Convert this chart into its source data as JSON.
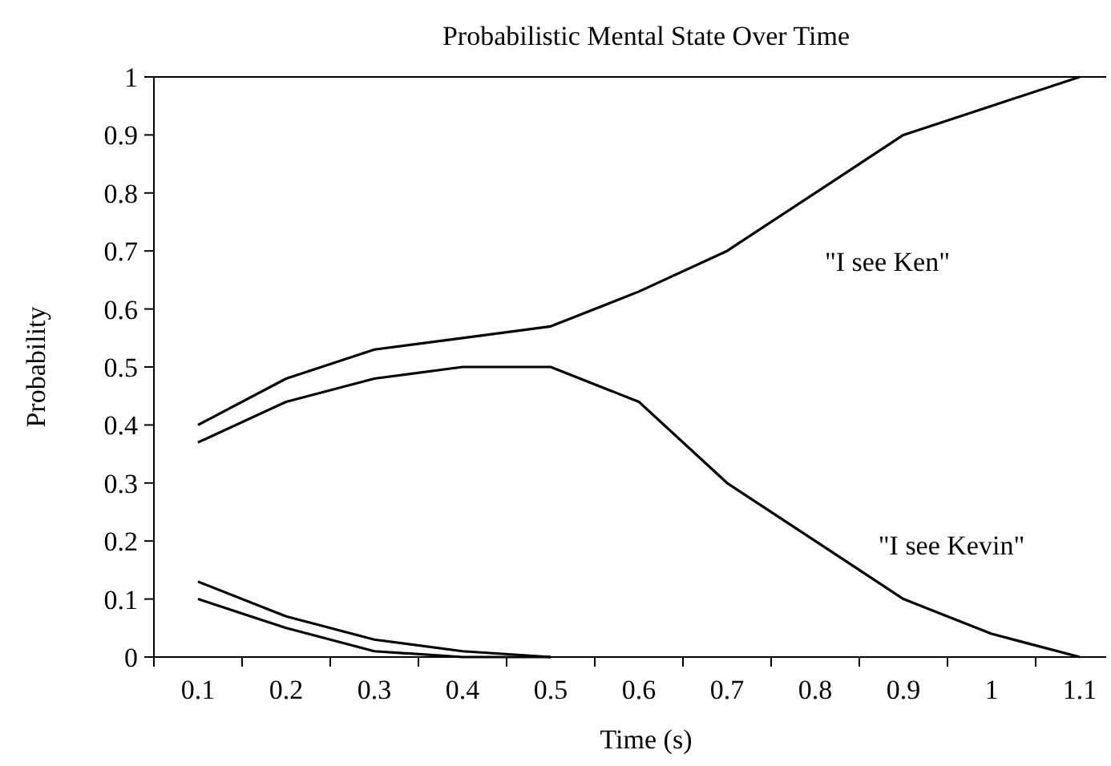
{
  "chart_data": {
    "type": "line",
    "title": "Probabilistic Mental State Over Time",
    "xlabel": "Time (s)",
    "ylabel": "Probability",
    "categories": [
      "0.1",
      "0.2",
      "0.3",
      "0.4",
      "0.5",
      "0.6",
      "0.7",
      "0.8",
      "0.9",
      "1",
      "1.1"
    ],
    "ylim": [
      0,
      1
    ],
    "yticks": [
      0,
      0.1,
      0.2,
      0.3,
      0.4,
      0.5,
      0.6,
      0.7,
      0.8,
      0.9,
      1
    ],
    "grid": false,
    "legend": false,
    "marker": "none",
    "line_style": "solid",
    "series": [
      {
        "name": "\"I see Ken\"",
        "color": "#000000",
        "values": [
          0.4,
          0.48,
          0.53,
          0.55,
          0.57,
          0.63,
          0.7,
          0.8,
          0.9,
          0.95,
          1.0
        ]
      },
      {
        "name": "\"I see Kevin\"",
        "color": "#000000",
        "values": [
          0.37,
          0.44,
          0.48,
          0.5,
          0.5,
          0.44,
          0.3,
          0.2,
          0.1,
          0.04,
          0
        ]
      },
      {
        "color": "#000000",
        "values": [
          0.13,
          0.07,
          0.03,
          0.01,
          0,
          null,
          null,
          null,
          null,
          null,
          null
        ]
      },
      {
        "color": "#000000",
        "values": [
          0.1,
          0.05,
          0.01,
          0,
          0,
          null,
          null,
          null,
          null,
          null,
          null
        ]
      }
    ]
  }
}
